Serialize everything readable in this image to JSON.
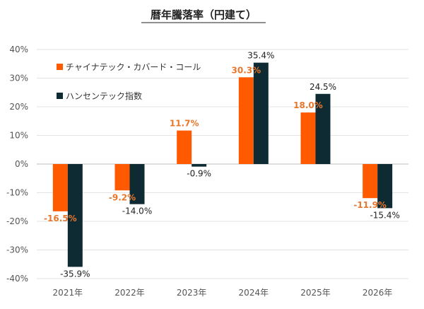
{
  "chart_data": {
    "type": "bar",
    "title": "暦年騰落率（円建て）",
    "categories": [
      "2021年",
      "2022年",
      "2023年",
      "2024年",
      "2025年",
      "2026年"
    ],
    "series": [
      {
        "name": "チャイナテック・カバード・コール",
        "color": "#ff5a00",
        "label_color": "#e8772e",
        "values": [
          -16.5,
          -9.2,
          11.7,
          30.3,
          18.0,
          -11.9
        ],
        "labels": [
          "-16.5%",
          "-9.2%",
          "11.7%",
          "30.3%",
          "18.0%",
          "-11.9%"
        ]
      },
      {
        "name": "ハンセンテック指数",
        "color": "#0e2b33",
        "label_color": "#222222",
        "values": [
          -35.9,
          -14.0,
          -0.9,
          35.4,
          24.5,
          -15.4
        ],
        "labels": [
          "-35.9%",
          "-14.0%",
          "-0.9%",
          "35.4%",
          "24.5%",
          "-15.4%"
        ]
      }
    ],
    "yticks": [
      "40%",
      "30%",
      "20%",
      "10%",
      "0%",
      "-10%",
      "-20%",
      "-30%",
      "-40%"
    ],
    "ytick_values": [
      40,
      30,
      20,
      10,
      0,
      -10,
      -20,
      -30,
      -40
    ],
    "ylim": [
      -40,
      40
    ],
    "grid": true,
    "legend_position": "top-left"
  }
}
